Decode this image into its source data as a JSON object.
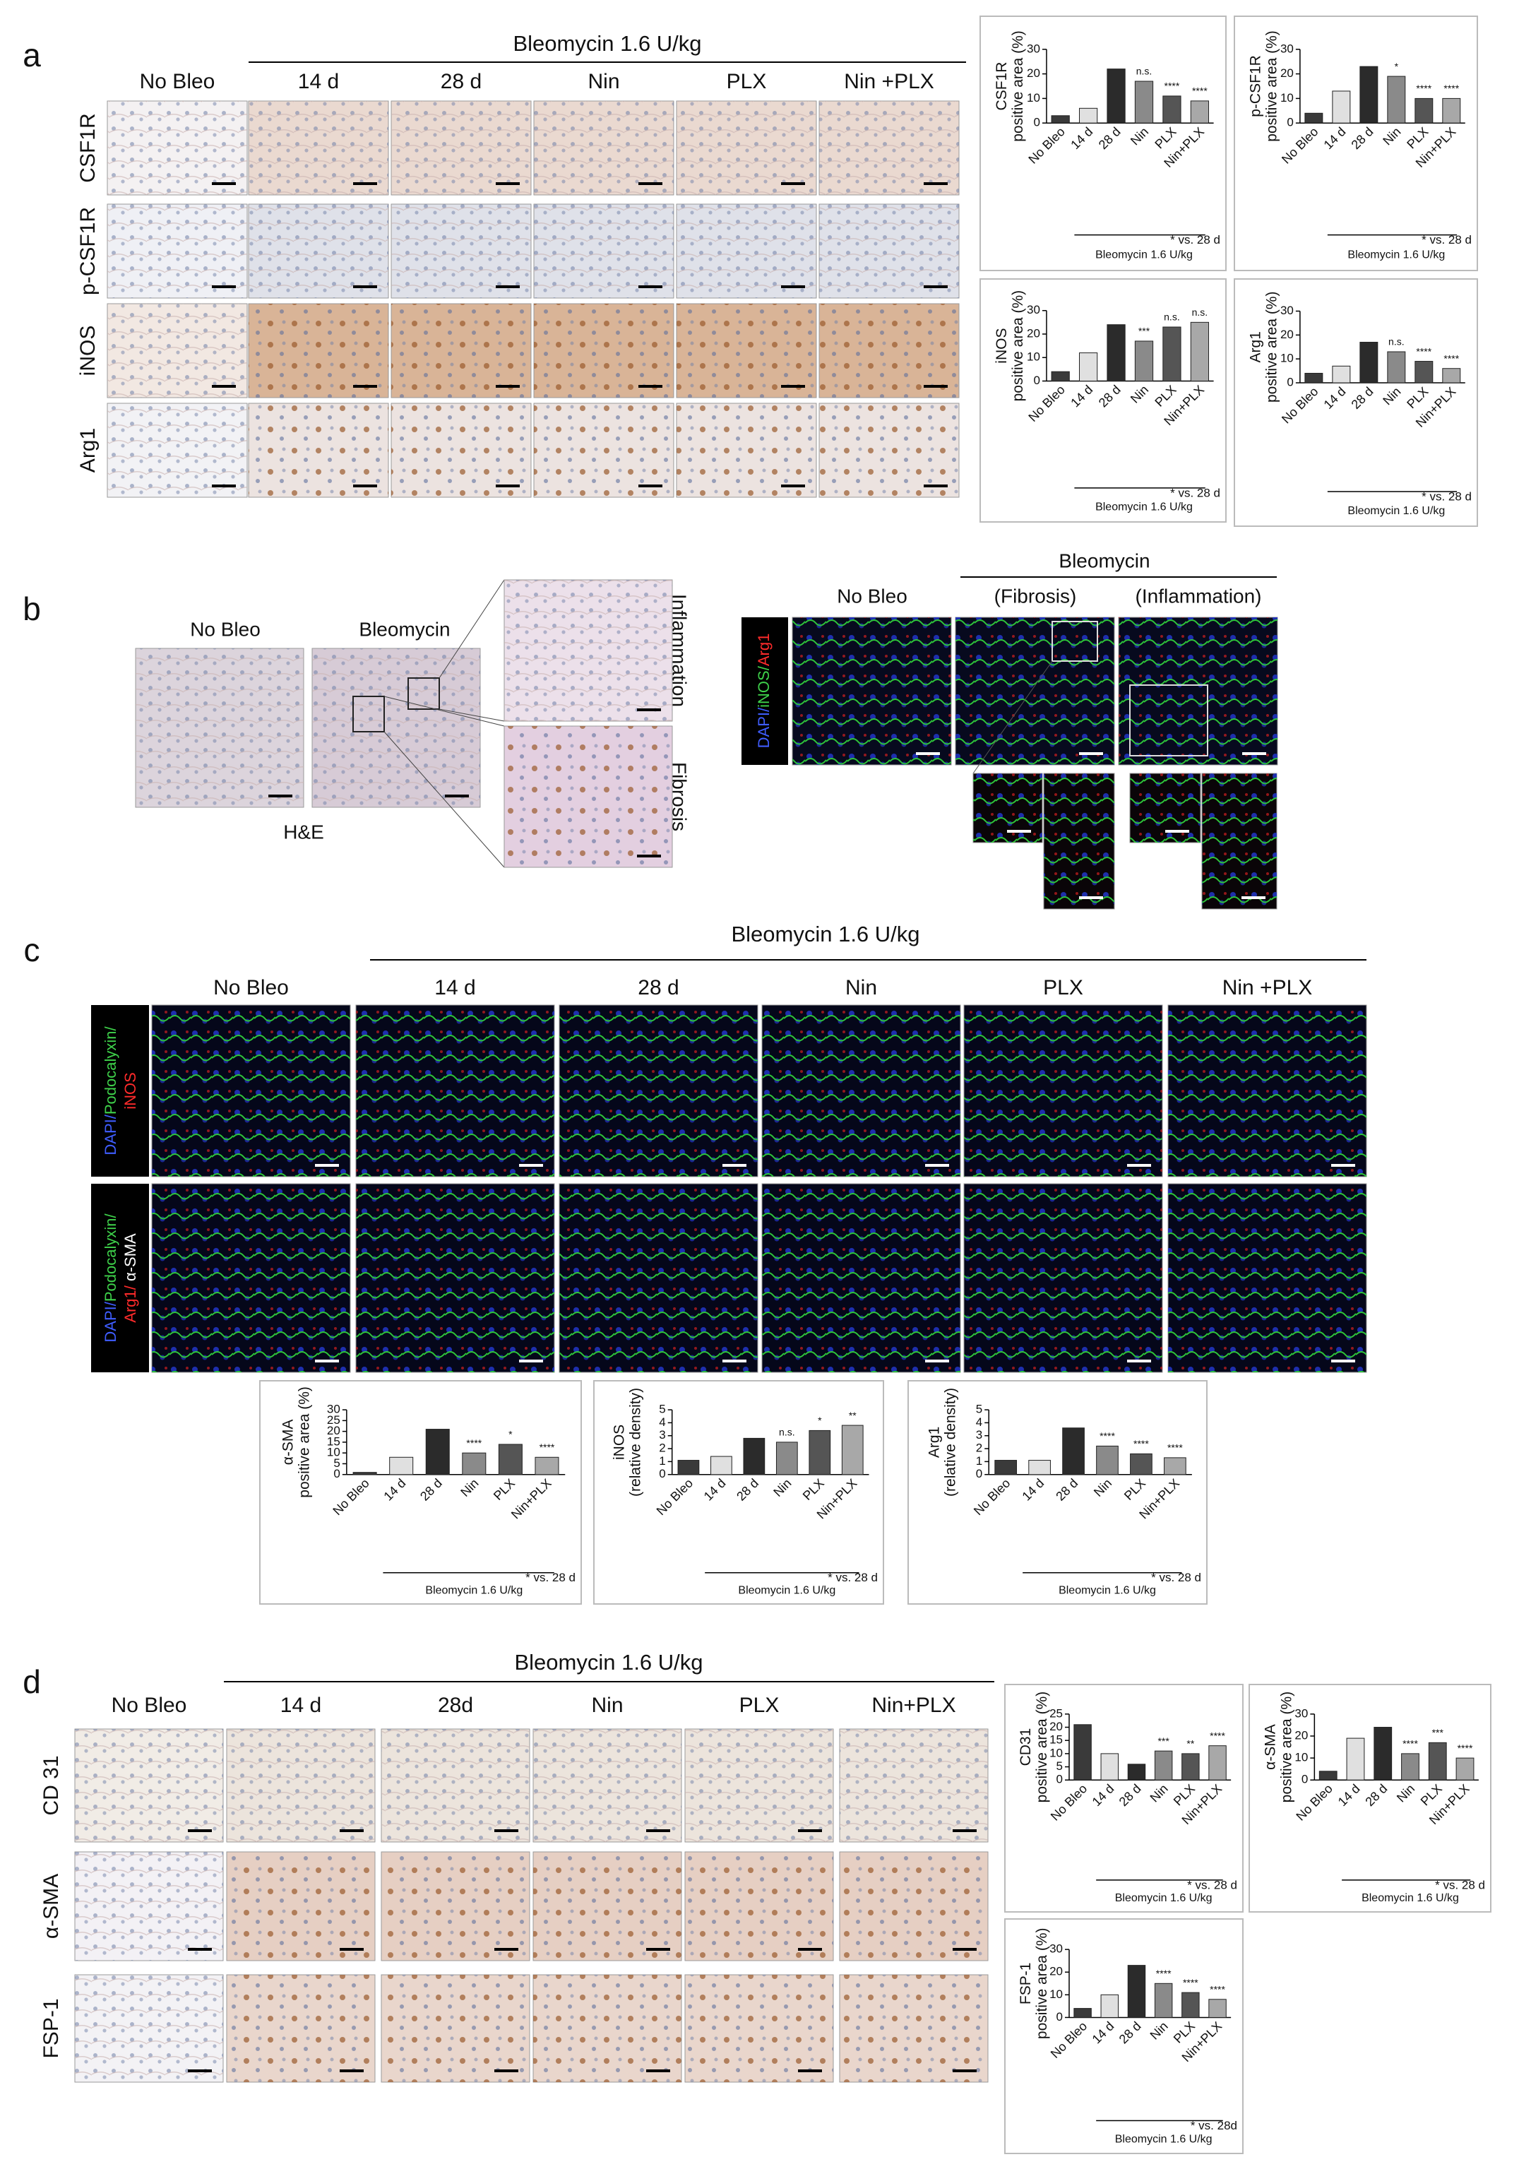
{
  "figure": {
    "a": {
      "label": "a",
      "group": "Bleomycin 1.6 U/kg",
      "columns": [
        "No Bleo",
        "14 d",
        "28 d",
        "Nin",
        "PLX",
        "Nin +PLX"
      ],
      "rows": [
        "CSF1R",
        "p-CSF1R",
        "iNOS",
        "Arg1"
      ]
    },
    "b": {
      "label": "b",
      "he_columns": [
        "No Bleo",
        "Bleomycin"
      ],
      "he_stain": "H&E",
      "insets": [
        "Inflammation",
        "Fibrosis"
      ],
      "if_group": "Bleomycin",
      "if_columns": [
        "No Bleo",
        "(Fibrosis)",
        "(Inflammation)"
      ],
      "if_stain": [
        "DAPI/",
        "iNOS/",
        "Arg1"
      ]
    },
    "c": {
      "label": "c",
      "group": "Bleomycin 1.6 U/kg",
      "columns": [
        "No Bleo",
        "14 d",
        "28 d",
        "Nin",
        "PLX",
        "Nin +PLX"
      ],
      "rows": [
        [
          [
            "DAPI/",
            "Podocalyxin/"
          ],
          [
            "iNOS"
          ]
        ],
        [
          [
            "DAPI/",
            "Podocalyxin/"
          ],
          [
            "Arg1/",
            " α-SMA"
          ]
        ]
      ]
    },
    "d": {
      "label": "d",
      "group": "Bleomycin 1.6 U/kg",
      "columns": [
        "No Bleo",
        "14 d",
        "28d",
        "Nin",
        "PLX",
        "Nin+PLX"
      ],
      "rows": [
        "CD 31",
        "α-SMA",
        "FSP-1"
      ]
    }
  },
  "chart_data": [
    {
      "type": "bar",
      "ylabel": [
        "CSF1R",
        "positive area (%)"
      ],
      "categories": [
        "No Bleo",
        "14 d",
        "28 d",
        "Nin",
        "PLX",
        "Nin+PLX"
      ],
      "values": [
        3,
        6,
        22,
        17,
        11,
        9
      ],
      "colors": [
        "#3a3a3a",
        "#e0e0e0",
        "#2b2b2b",
        "#8a8a8a",
        "#555555",
        "#a8a8a8"
      ],
      "ylim": [
        0,
        30
      ],
      "yticks": [
        0,
        10,
        20,
        30
      ],
      "annotations": [
        null,
        null,
        null,
        "n.s.",
        "****",
        "****"
      ],
      "group_label": "Bleomycin 1.6 U/kg",
      "note": "* vs. 28 d"
    },
    {
      "type": "bar",
      "ylabel": [
        "p-CSF1R",
        "positive area (%)"
      ],
      "categories": [
        "No Bleo",
        "14 d",
        "28 d",
        "Nin",
        "PLX",
        "Nin+PLX"
      ],
      "values": [
        4,
        13,
        23,
        19,
        10,
        10
      ],
      "colors": [
        "#3a3a3a",
        "#e0e0e0",
        "#2b2b2b",
        "#8a8a8a",
        "#555555",
        "#a8a8a8"
      ],
      "ylim": [
        0,
        30
      ],
      "yticks": [
        0,
        10,
        20,
        30
      ],
      "annotations": [
        null,
        null,
        null,
        "*",
        "****",
        "****"
      ],
      "group_label": "Bleomycin 1.6 U/kg",
      "note": "* vs. 28 d"
    },
    {
      "type": "bar",
      "ylabel": [
        "iNOS",
        "positive area (%)"
      ],
      "categories": [
        "No Bleo",
        "14 d",
        "28 d",
        "Nin",
        "PLX",
        "Nin+PLX"
      ],
      "values": [
        4,
        12,
        24,
        17,
        23,
        25
      ],
      "colors": [
        "#3a3a3a",
        "#e0e0e0",
        "#2b2b2b",
        "#8a8a8a",
        "#555555",
        "#a8a8a8"
      ],
      "ylim": [
        0,
        30
      ],
      "yticks": [
        0,
        10,
        20,
        30
      ],
      "annotations": [
        null,
        null,
        null,
        "***",
        "n.s.",
        "n.s."
      ],
      "group_label": "Bleomycin 1.6 U/kg",
      "note": "* vs. 28 d"
    },
    {
      "type": "bar",
      "ylabel": [
        "Arg1",
        "positive area (%)"
      ],
      "categories": [
        "No Bleo",
        "14 d",
        "28 d",
        "Nin",
        "PLX",
        "Nin+PLX"
      ],
      "values": [
        4,
        7,
        17,
        13,
        9,
        6
      ],
      "colors": [
        "#3a3a3a",
        "#e0e0e0",
        "#2b2b2b",
        "#8a8a8a",
        "#555555",
        "#a8a8a8"
      ],
      "ylim": [
        0,
        30
      ],
      "yticks": [
        0,
        10,
        20,
        30
      ],
      "annotations": [
        null,
        null,
        null,
        "n.s.",
        "****",
        "****"
      ],
      "group_label": "Bleomycin 1.6 U/kg",
      "note": "* vs. 28 d"
    },
    {
      "type": "bar",
      "ylabel": [
        "α-SMA",
        "positive area (%)"
      ],
      "categories": [
        "No Bleo",
        "14 d",
        "28 d",
        "Nin",
        "PLX",
        "Nin+PLX"
      ],
      "values": [
        1,
        8,
        21,
        10,
        14,
        8
      ],
      "colors": [
        "#3a3a3a",
        "#e0e0e0",
        "#2b2b2b",
        "#8a8a8a",
        "#555555",
        "#a8a8a8"
      ],
      "ylim": [
        0,
        30
      ],
      "yticks": [
        0,
        5,
        10,
        15,
        20,
        25,
        30
      ],
      "annotations": [
        null,
        null,
        null,
        "****",
        "*",
        "****"
      ],
      "group_label": "Bleomycin 1.6 U/kg",
      "note": "* vs. 28 d"
    },
    {
      "type": "bar",
      "ylabel": [
        "iNOS",
        "(relative density)"
      ],
      "categories": [
        "No Bleo",
        "14 d",
        "28 d",
        "Nin",
        "PLX",
        "Nin+PLX"
      ],
      "values": [
        1.1,
        1.4,
        2.8,
        2.5,
        3.4,
        3.8
      ],
      "colors": [
        "#3a3a3a",
        "#e0e0e0",
        "#2b2b2b",
        "#8a8a8a",
        "#555555",
        "#a8a8a8"
      ],
      "ylim": [
        0,
        5
      ],
      "yticks": [
        0,
        1,
        2,
        3,
        4,
        5
      ],
      "annotations": [
        null,
        null,
        null,
        "n.s.",
        "*",
        "**"
      ],
      "group_label": "Bleomycin 1.6 U/kg",
      "note": "* vs. 28 d"
    },
    {
      "type": "bar",
      "ylabel": [
        "Arg1",
        "(relative density)"
      ],
      "categories": [
        "No Bleo",
        "14 d",
        "28 d",
        "Nin",
        "PLX",
        "Nin+PLX"
      ],
      "values": [
        1.1,
        1.1,
        3.6,
        2.2,
        1.6,
        1.3
      ],
      "colors": [
        "#3a3a3a",
        "#e0e0e0",
        "#2b2b2b",
        "#8a8a8a",
        "#555555",
        "#a8a8a8"
      ],
      "ylim": [
        0,
        5
      ],
      "yticks": [
        0,
        1,
        2,
        3,
        4,
        5
      ],
      "annotations": [
        null,
        null,
        null,
        "****",
        "****",
        "****"
      ],
      "group_label": "Bleomycin 1.6 U/kg",
      "note": "* vs. 28 d"
    },
    {
      "type": "bar",
      "ylabel": [
        "CD31",
        "positive area (%)"
      ],
      "categories": [
        "No Bleo",
        "14 d",
        "28 d",
        "Nin",
        "PLX",
        "Nin+PLX"
      ],
      "values": [
        21,
        10,
        6,
        11,
        10,
        13
      ],
      "colors": [
        "#3a3a3a",
        "#e0e0e0",
        "#2b2b2b",
        "#8a8a8a",
        "#555555",
        "#a8a8a8"
      ],
      "ylim": [
        0,
        25
      ],
      "yticks": [
        0,
        5,
        10,
        15,
        20,
        25
      ],
      "annotations": [
        null,
        null,
        null,
        "***",
        "**",
        "****"
      ],
      "group_label": "Bleomycin 1.6 U/kg",
      "note": "* vs. 28 d"
    },
    {
      "type": "bar",
      "ylabel": [
        "α-SMA",
        "positive area (%)"
      ],
      "categories": [
        "No Bleo",
        "14 d",
        "28 d",
        "Nin",
        "PLX",
        "Nin+PLX"
      ],
      "values": [
        4,
        19,
        24,
        12,
        17,
        10
      ],
      "colors": [
        "#3a3a3a",
        "#e0e0e0",
        "#2b2b2b",
        "#8a8a8a",
        "#555555",
        "#a8a8a8"
      ],
      "ylim": [
        0,
        30
      ],
      "yticks": [
        0,
        10,
        20,
        30
      ],
      "annotations": [
        null,
        null,
        null,
        "****",
        "***",
        "****"
      ],
      "group_label": "Bleomycin 1.6 U/kg",
      "note": "* vs. 28 d"
    },
    {
      "type": "bar",
      "ylabel": [
        "FSP-1",
        "positive area (%)"
      ],
      "categories": [
        "No Bleo",
        "14 d",
        "28 d",
        "Nin",
        "PLX",
        "Nin+PLX"
      ],
      "values": [
        4,
        10,
        23,
        15,
        11,
        8
      ],
      "colors": [
        "#3a3a3a",
        "#e0e0e0",
        "#2b2b2b",
        "#8a8a8a",
        "#555555",
        "#a8a8a8"
      ],
      "ylim": [
        0,
        30
      ],
      "yticks": [
        0,
        10,
        20,
        30
      ],
      "annotations": [
        null,
        null,
        null,
        "****",
        "****",
        "****"
      ],
      "group_label": "Bleomycin 1.6 U/kg",
      "note": "* vs. 28d"
    }
  ]
}
